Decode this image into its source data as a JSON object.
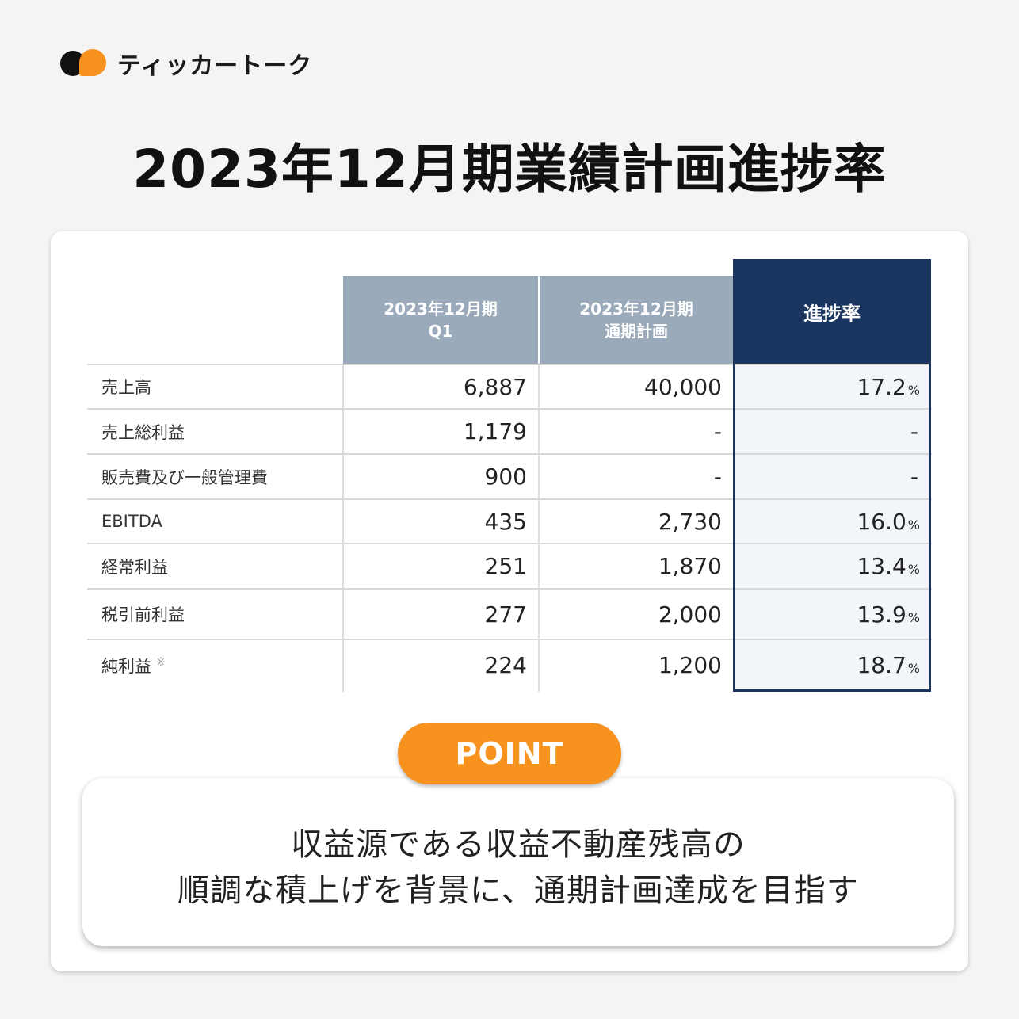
{
  "brand": {
    "name": "ティッカートーク"
  },
  "title": "2023年12月期業績計画進捗率",
  "table": {
    "headers": {
      "q1_line1": "2023年12月期",
      "q1_line2": "Q1",
      "plan_line1": "2023年12月期",
      "plan_line2": "通期計画",
      "rate": "進捗率"
    },
    "rows": [
      {
        "label": "売上高",
        "q1": "6,887",
        "plan": "40,000",
        "rate": "17.2",
        "pct": "%"
      },
      {
        "label": "売上総利益",
        "q1": "1,179",
        "plan": "-",
        "rate": "-",
        "pct": ""
      },
      {
        "label": "販売費及び一般管理費",
        "q1": "900",
        "plan": "-",
        "rate": "-",
        "pct": ""
      },
      {
        "label": "EBITDA",
        "q1": "435",
        "plan": "2,730",
        "rate": "16.0",
        "pct": "%"
      },
      {
        "label": "経常利益",
        "q1": "251",
        "plan": "1,870",
        "rate": "13.4",
        "pct": "%"
      },
      {
        "label": "税引前利益",
        "q1": "277",
        "plan": "2,000",
        "rate": "13.9",
        "pct": "%"
      },
      {
        "label": "純利益",
        "note": "※",
        "q1": "224",
        "plan": "1,200",
        "rate": "18.7",
        "pct": "%"
      }
    ]
  },
  "point": {
    "label": "POINT",
    "line1": "収益源である収益不動産残高の",
    "line2": "順調な積上げを背景に、通期計画達成を目指す"
  }
}
